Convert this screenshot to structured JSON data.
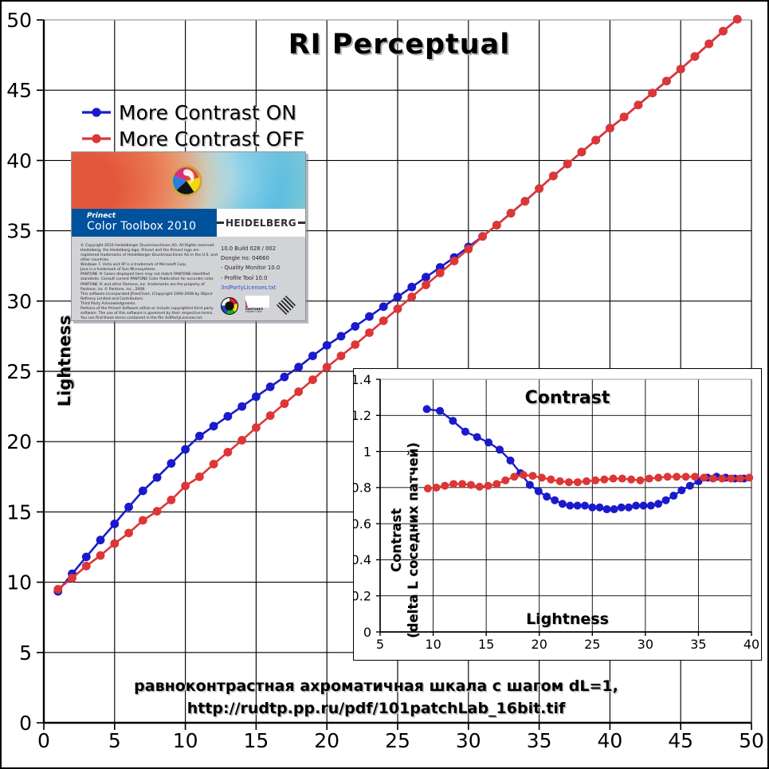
{
  "main_chart": {
    "title": "RI Perceptual",
    "y_axis_label": "Lightness",
    "caption_line1": "равноконтрастная ахроматичная шкала с шагом dL=1,",
    "caption_line2": "http://rudtp.pp.ru/pdf/101patchLab_16bit.tif",
    "legend": [
      {
        "label": "More Contrast ON",
        "color": "#1a1acc"
      },
      {
        "label": "More Contrast OFF",
        "color": "#dd3636"
      }
    ]
  },
  "colors": {
    "blue": "#1a1acc",
    "red": "#dd3636",
    "grid": "#000000",
    "top_border": "#9a9a9a",
    "splash_blue": "#00529c"
  },
  "splash": {
    "product_brand": "Prinect",
    "product_name": "Color Toolbox 2010",
    "manufacturer": "HEIDELBERG",
    "build": "10.0 Build 028 / 002",
    "dongle": "Dongle no: 04660",
    "modules": [
      "- Quality Monitor 10.0",
      "- Profile Tool 10.0"
    ],
    "license_link": "3rdPartyLicenses.txt",
    "pantone_label": "PANTONE®",
    "pantone_sub": "Digital Color",
    "copyright": "© Copyright 2010 Heidelberger Druckmaschinen AG. All Rights reserved.\nHeidelberg, the Heidelberg logo, Prinect and the Prinect logo are registered trademarks of Heidelberger Druckmaschinen AG in the U.S. and other countries.\nWindows 7, Vista and XP is a trademark of Microsoft Corp.\nJava is a trademark of Sun Microsystems.\nPANTONE ® Colors displayed here may not match PANTONE-identified standards. Consult current PANTONE Color Publication for accurate color. PANTONE ® and other Pantone, inc. trademarks are the property of Pantone, inc © Pantone, inc., 2008.\nThis software incorporated JFreeChart, (C)opyright 2000-2008 by Object Refinery Limited and Contributors.\nThird Party Acknowledgments.\nPortions of the Prinect Software utilize or include copyrighted third party software. The use of this software is governed by their respective terms. You can find these terms contained in the file 3rdPartyLicenses.txt"
  },
  "chart_data": [
    {
      "type": "line",
      "title": "RI Perceptual",
      "xlabel": "",
      "ylabel": "Lightness",
      "xlim": [
        0,
        50
      ],
      "ylim": [
        0,
        50
      ],
      "grid": true,
      "legend_position": "top-left",
      "xticks": [
        0,
        5,
        10,
        15,
        20,
        25,
        30,
        35,
        40,
        45,
        50
      ],
      "xtick_labels": [
        "0",
        "5",
        "10",
        "15",
        "20",
        "25",
        "30",
        "35",
        "40",
        "45",
        "50"
      ],
      "yticks": [
        0,
        5,
        10,
        15,
        20,
        25,
        30,
        35,
        40,
        45,
        50
      ],
      "ytick_labels": [
        "0",
        "5",
        "10",
        "15",
        "20",
        "25",
        "30",
        "35",
        "40",
        "45",
        "50"
      ],
      "x": [
        1,
        2,
        3,
        4,
        5,
        6,
        7,
        8,
        9,
        10,
        11,
        12,
        13,
        14,
        15,
        16,
        17,
        18,
        19,
        20,
        21,
        22,
        23,
        24,
        25,
        26,
        27,
        28,
        29,
        30,
        31,
        32,
        33,
        34,
        35,
        36,
        37,
        38,
        39,
        40,
        41,
        42,
        43,
        44,
        45,
        46,
        47,
        48,
        49,
        50
      ],
      "series": [
        {
          "name": "More Contrast ON",
          "color": "#1a1acc",
          "values": [
            9.35,
            10.6,
            11.8,
            13.0,
            14.15,
            15.35,
            16.5,
            17.45,
            18.45,
            19.45,
            20.4,
            21.1,
            21.8,
            22.5,
            23.2,
            23.9,
            24.6,
            25.3,
            26.1,
            26.85,
            27.5,
            28.2,
            28.9,
            29.6,
            30.3,
            31.0,
            31.7,
            32.4,
            33.1,
            33.85,
            34.6,
            35.4,
            36.25,
            37.1,
            38.0,
            38.9,
            39.75,
            40.6,
            41.45,
            42.3,
            43.1,
            43.95,
            44.8,
            45.65,
            46.5,
            47.4,
            48.3,
            49.2,
            50.05,
            50.9
          ]
        },
        {
          "name": "More Contrast OFF",
          "color": "#dd3636",
          "values": [
            9.5,
            10.3,
            11.15,
            11.9,
            12.75,
            13.5,
            14.4,
            15.05,
            15.85,
            16.85,
            17.5,
            18.4,
            19.25,
            20.1,
            21.0,
            21.85,
            22.7,
            23.55,
            24.4,
            25.3,
            26.1,
            26.9,
            27.75,
            28.6,
            29.45,
            30.3,
            31.15,
            32.0,
            32.85,
            33.7,
            34.6,
            35.4,
            36.25,
            37.1,
            38.0,
            38.9,
            39.75,
            40.6,
            41.45,
            42.3,
            43.1,
            43.95,
            44.8,
            45.65,
            46.5,
            47.4,
            48.3,
            49.2,
            50.05,
            50.9
          ]
        }
      ]
    },
    {
      "type": "line",
      "title": "Contrast",
      "xlabel": "Lightness",
      "ylabel": "Contrast (delta L соседних патчей)",
      "ylabel_line1": "Contrast",
      "ylabel_line2": "(delta L соседних патчей)",
      "xlim": [
        5,
        40
      ],
      "ylim": [
        0,
        1.4
      ],
      "grid": true,
      "xticks": [
        5,
        10,
        15,
        20,
        25,
        30,
        35,
        40
      ],
      "xtick_labels": [
        "5",
        "10",
        "15",
        "20",
        "25",
        "30",
        "35",
        "40"
      ],
      "yticks": [
        0,
        0.2,
        0.4,
        0.6,
        0.8,
        1,
        1.2,
        1.4
      ],
      "ytick_labels": [
        "0",
        "0.2",
        "0.4",
        "0.6",
        "0.8",
        "1",
        "1.2",
        "1.4"
      ],
      "series": [
        {
          "name": "More Contrast ON",
          "color": "#1a1acc",
          "x": [
            9.4,
            10.64,
            11.86,
            13.03,
            14.14,
            15.22,
            16.27,
            17.28,
            18.23,
            19.11,
            19.93,
            20.71,
            21.46,
            22.19,
            22.9,
            23.6,
            24.3,
            25.0,
            25.69,
            26.37,
            27.05,
            27.74,
            28.43,
            29.12,
            29.82,
            30.52,
            31.22,
            31.93,
            32.66,
            33.42,
            34.2,
            35.01,
            35.85,
            36.71,
            37.57,
            38.43,
            39.28
          ],
          "values": [
            1.235,
            1.225,
            1.17,
            1.11,
            1.08,
            1.05,
            1.01,
            0.95,
            0.88,
            0.815,
            0.78,
            0.75,
            0.73,
            0.71,
            0.7,
            0.7,
            0.7,
            0.69,
            0.69,
            0.68,
            0.68,
            0.69,
            0.69,
            0.7,
            0.7,
            0.7,
            0.71,
            0.73,
            0.755,
            0.785,
            0.81,
            0.835,
            0.855,
            0.86,
            0.855,
            0.85,
            0.85
          ]
        },
        {
          "name": "More Contrast OFF",
          "color": "#dd3636",
          "x": [
            9.5,
            10.3,
            11.1,
            11.92,
            12.74,
            13.56,
            14.37,
            15.18,
            15.99,
            16.81,
            17.65,
            18.51,
            19.38,
            20.24,
            21.1,
            21.95,
            22.79,
            23.62,
            24.45,
            25.29,
            26.13,
            26.97,
            27.82,
            28.67,
            29.52,
            30.37,
            31.23,
            32.09,
            32.95,
            33.81,
            34.67,
            35.53,
            36.38,
            37.23,
            38.08,
            38.93,
            39.79
          ],
          "values": [
            0.795,
            0.8,
            0.81,
            0.82,
            0.82,
            0.815,
            0.805,
            0.81,
            0.82,
            0.84,
            0.86,
            0.87,
            0.865,
            0.855,
            0.845,
            0.835,
            0.83,
            0.83,
            0.835,
            0.84,
            0.845,
            0.85,
            0.85,
            0.845,
            0.84,
            0.85,
            0.855,
            0.86,
            0.86,
            0.86,
            0.86,
            0.855,
            0.85,
            0.85,
            0.85,
            0.85,
            0.855
          ]
        }
      ]
    }
  ]
}
